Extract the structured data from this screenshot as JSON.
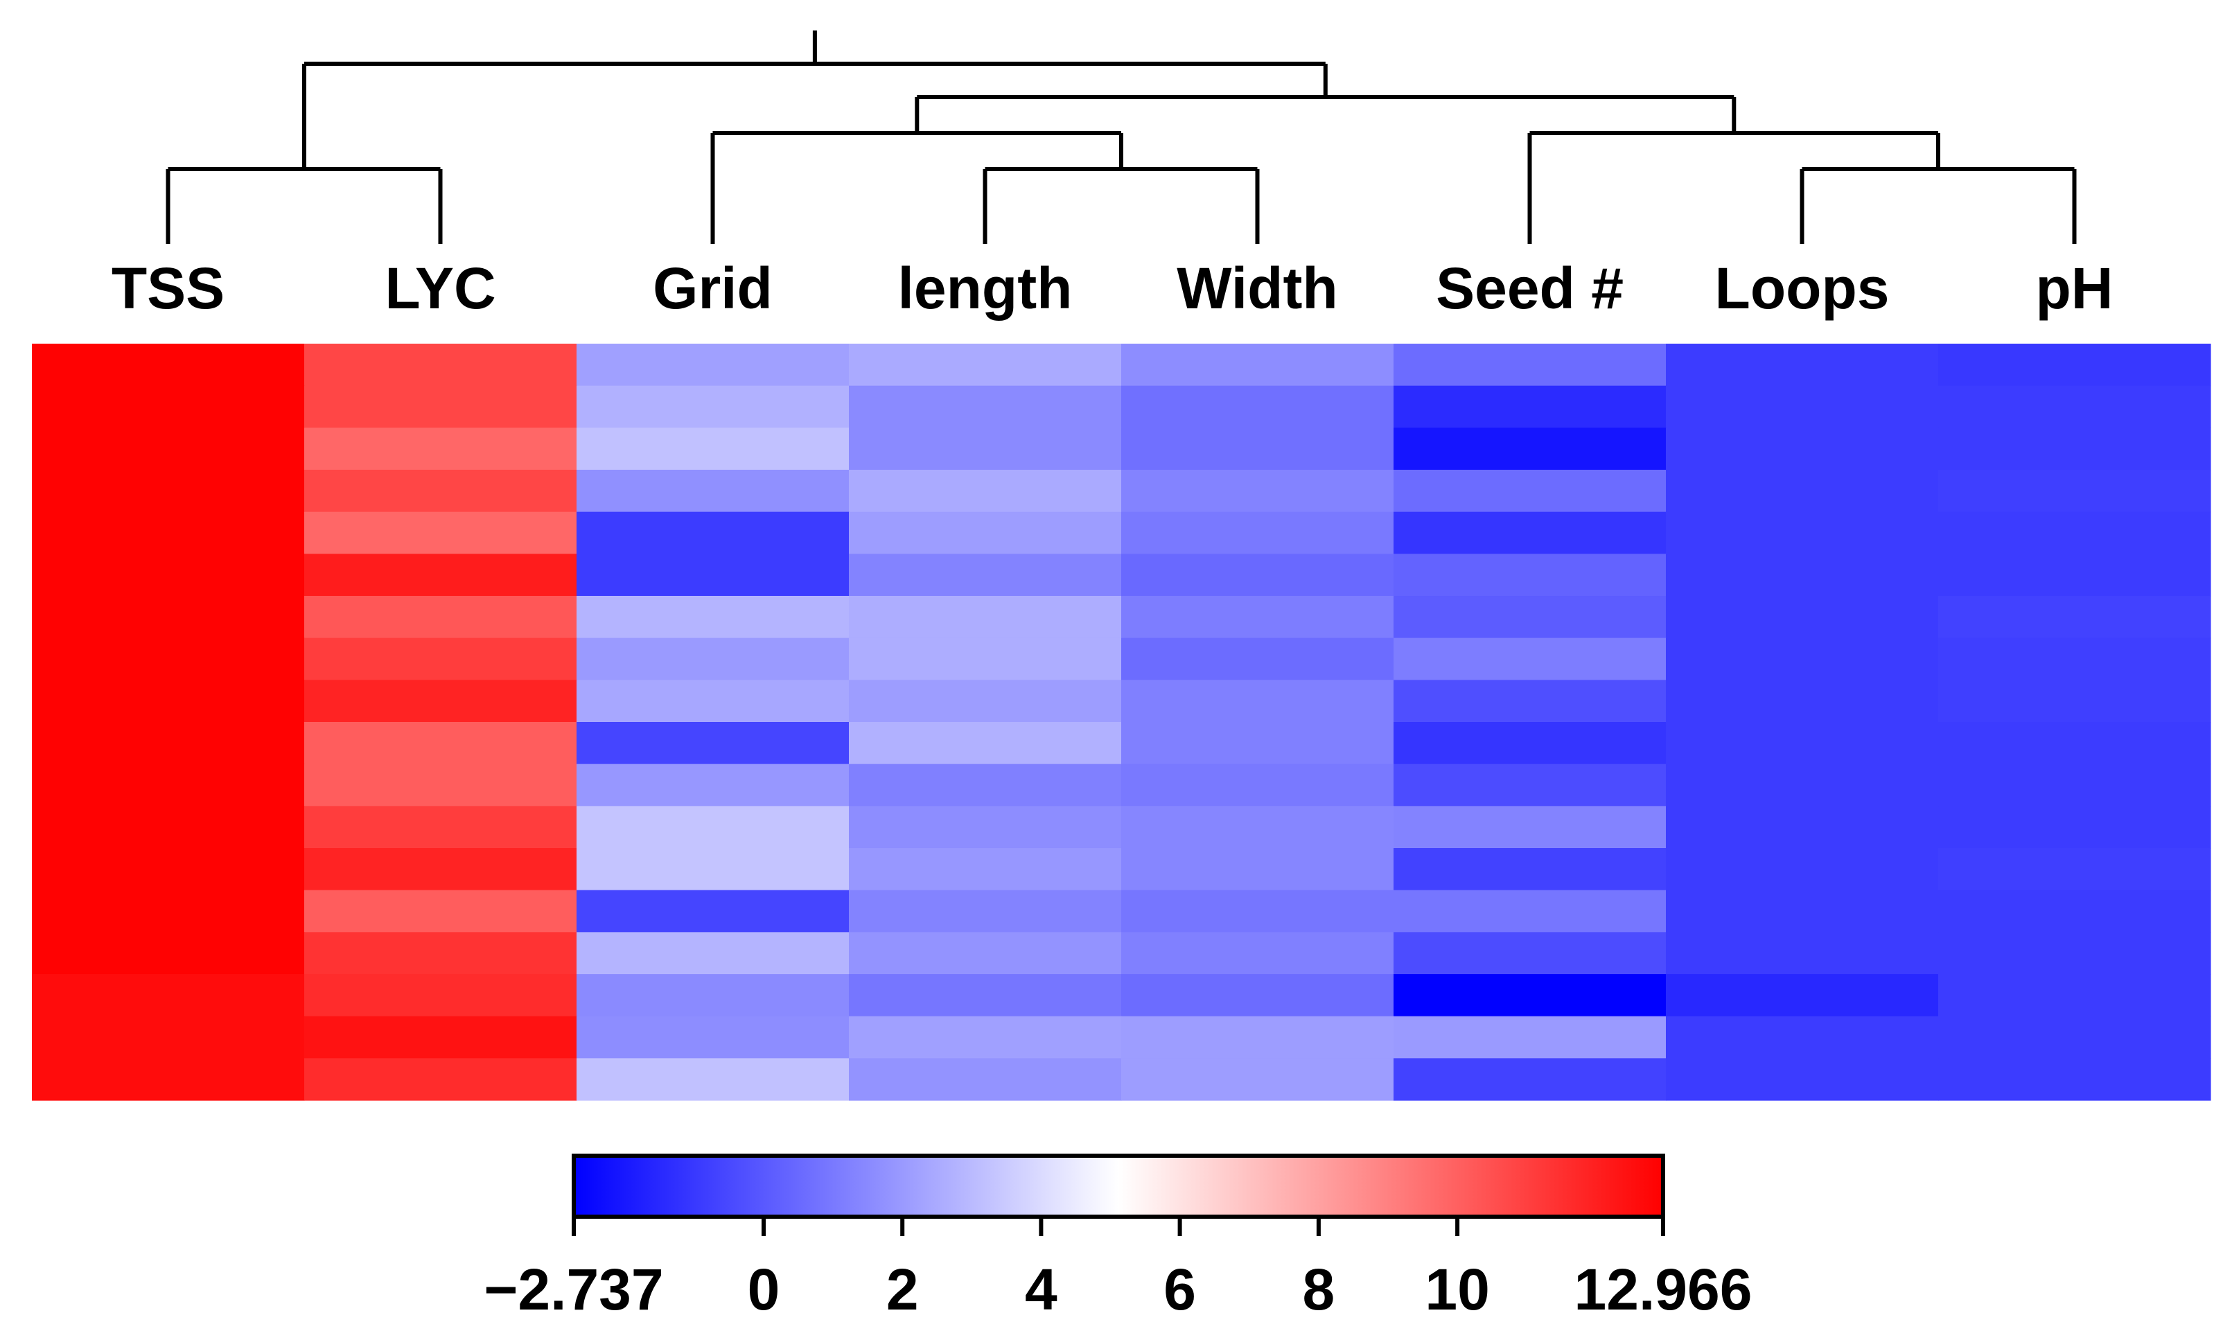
{
  "chart_data": {
    "type": "heatmap",
    "columns": [
      "TSS",
      "LYC",
      "Grid",
      "length",
      "Width",
      "Seed #",
      "Loops",
      "pH"
    ],
    "dendrogram": {
      "leaf_order": [
        "TSS",
        "LYC",
        "Grid",
        "length",
        "Width",
        "Seed #",
        "Loops",
        "pH"
      ],
      "merges": [
        {
          "left": "TSS",
          "right": "LYC",
          "level": 4
        },
        {
          "left": "length",
          "right": "Width",
          "level": 4
        },
        {
          "left": "Loops",
          "right": "pH",
          "level": 4
        },
        {
          "left": "Grid",
          "right": "length+Width",
          "level": 5
        },
        {
          "left": "Seed #",
          "right": "Loops+pH",
          "level": 5
        },
        {
          "left": "Grid+length+Width",
          "right": "Seed#+Loops+pH",
          "level": 6
        },
        {
          "left": "TSS+LYC",
          "right": "rest",
          "level": 7
        }
      ]
    },
    "values": [
      [
        12.9,
        10.8,
        2.2,
        2.5,
        1.6,
        0.6,
        -0.9,
        -1.0
      ],
      [
        12.9,
        10.8,
        2.7,
        1.5,
        0.7,
        -1.4,
        -0.9,
        -0.9
      ],
      [
        12.9,
        9.8,
        3.2,
        1.5,
        0.7,
        -2.1,
        -0.9,
        -0.9
      ],
      [
        12.9,
        10.8,
        1.7,
        2.5,
        1.3,
        0.6,
        -0.9,
        -0.8
      ],
      [
        12.9,
        9.8,
        -0.9,
        2.1,
        1.0,
        -1.1,
        -0.9,
        -0.9
      ],
      [
        12.9,
        12.1,
        -0.9,
        1.3,
        0.5,
        0.3,
        -0.9,
        -0.9
      ],
      [
        12.9,
        10.3,
        2.8,
        2.6,
        1.1,
        0.1,
        -0.9,
        -0.7
      ],
      [
        12.9,
        11.1,
        2.0,
        2.6,
        0.6,
        1.1,
        -0.9,
        -0.8
      ],
      [
        12.9,
        11.9,
        2.4,
        2.1,
        1.2,
        -0.3,
        -0.9,
        -0.8
      ],
      [
        12.9,
        10.1,
        -0.6,
        2.7,
        1.2,
        -1.1,
        -0.9,
        -0.9
      ],
      [
        12.9,
        10.1,
        1.9,
        1.2,
        1.0,
        -0.4,
        -0.9,
        -0.9
      ],
      [
        12.9,
        11.1,
        3.3,
        1.6,
        1.4,
        1.3,
        -0.9,
        -0.9
      ],
      [
        12.9,
        11.9,
        3.3,
        1.9,
        1.4,
        -0.7,
        -0.9,
        -0.8
      ],
      [
        12.9,
        10.1,
        -0.6,
        1.3,
        0.9,
        0.9,
        -0.9,
        -0.9
      ],
      [
        12.9,
        11.4,
        2.8,
        1.8,
        1.2,
        -0.4,
        -0.9,
        -0.9
      ],
      [
        12.6,
        11.6,
        1.5,
        0.9,
        0.6,
        -2.7,
        -1.5,
        -0.9
      ],
      [
        12.6,
        12.4,
        1.6,
        2.2,
        2.1,
        2.0,
        -0.9,
        -0.9
      ],
      [
        12.6,
        11.6,
        3.2,
        1.8,
        2.1,
        -0.7,
        -0.9,
        -0.9
      ]
    ],
    "colorbar": {
      "min": -2.737,
      "max": 12.966,
      "midpoint": 5.1145,
      "colors": {
        "low": "#0000ff",
        "mid": "#ffffff",
        "high": "#ff0000"
      },
      "tick_values": [
        -2.737,
        0,
        2,
        4,
        6,
        8,
        10,
        12.966
      ],
      "tick_labels": [
        "−2.737",
        "0",
        "2",
        "4",
        "6",
        "8",
        "10",
        "12.966"
      ]
    }
  }
}
